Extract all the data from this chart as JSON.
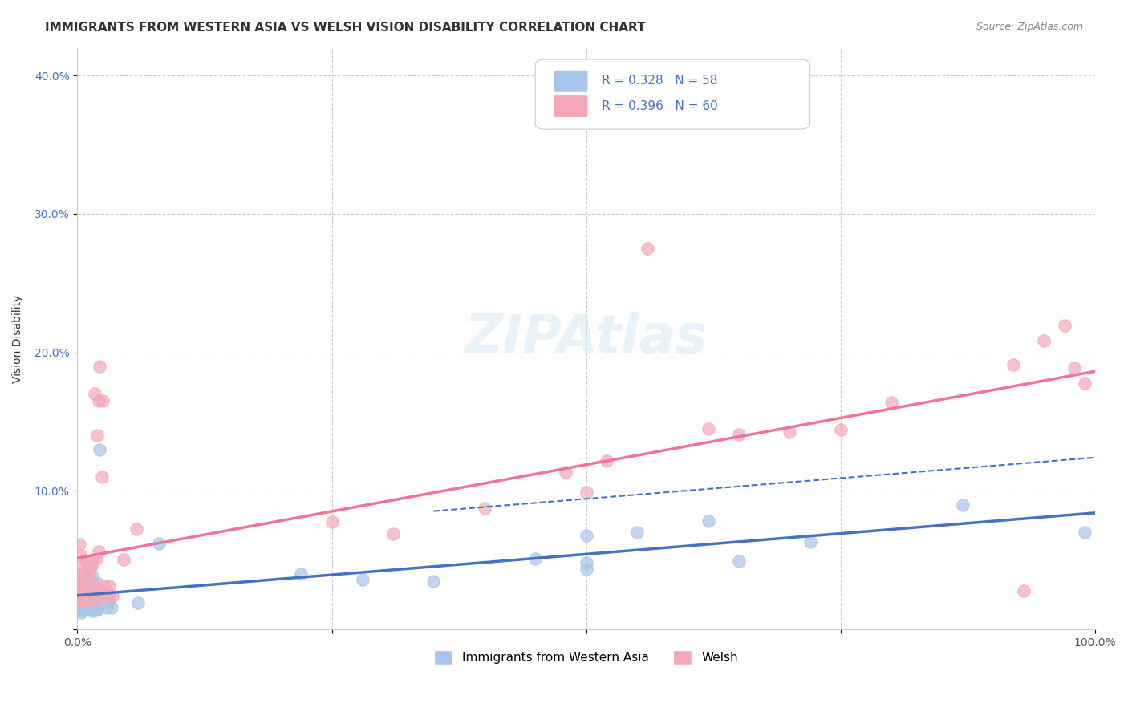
{
  "title": "IMMIGRANTS FROM WESTERN ASIA VS WELSH VISION DISABILITY CORRELATION CHART",
  "source": "Source: ZipAtlas.com",
  "ylabel": "Vision Disability",
  "xlim": [
    0.0,
    1.0
  ],
  "ylim": [
    0.0,
    0.42
  ],
  "blue_R": 0.328,
  "blue_N": 58,
  "pink_R": 0.396,
  "pink_N": 60,
  "blue_line_color": "#4472C4",
  "pink_line_color": "#F4729A",
  "scatter_blue_color": "#A8C4E8",
  "scatter_pink_color": "#F4A8B8",
  "background_color": "#FFFFFF",
  "grid_color": "#CCCCCC",
  "title_fontsize": 11,
  "axis_label_fontsize": 10,
  "tick_fontsize": 10,
  "legend_fontsize": 11,
  "source_fontsize": 9
}
